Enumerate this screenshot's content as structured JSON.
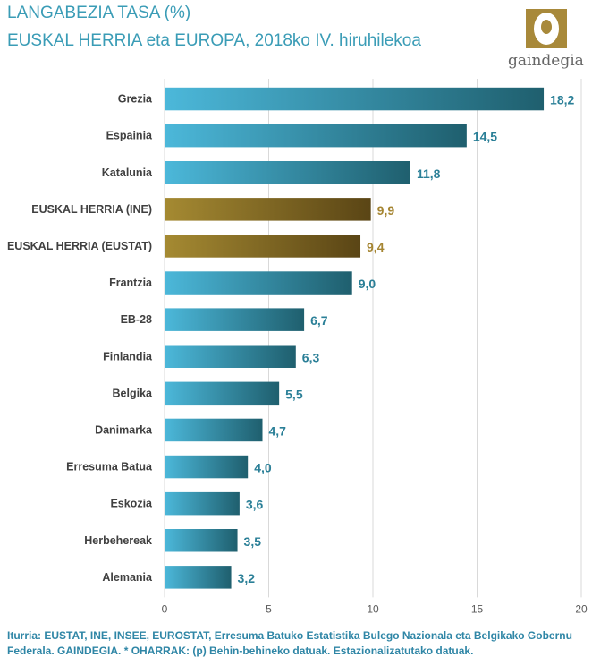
{
  "header": {
    "title": "LANGABEZIA TASA (%)",
    "subtitle": "EUSKAL HERRIA eta EUROPA, 2018ko IV. hiruhilekoa"
  },
  "logo": {
    "text": "gaindegia",
    "icon": "gaindegia-logo-icon"
  },
  "colors": {
    "bar_default_start": "#4cb8da",
    "bar_default_end": "#1f5f6e",
    "bar_highlight_start": "#a58a32",
    "bar_highlight_end": "#5a4515",
    "label_default": "#2a7f97",
    "label_highlight": "#a58532"
  },
  "chart_data": {
    "type": "bar",
    "orientation": "horizontal",
    "categories": [
      "Grezia",
      "Espainia",
      "Katalunia",
      "EUSKAL HERRIA (INE)",
      "EUSKAL HERRIA (EUSTAT)",
      "Frantzia",
      "EB-28",
      "Finlandia",
      "Belgika",
      "Danimarka",
      "Erresuma Batua",
      "Eskozia",
      "Herbehereak",
      "Alemania"
    ],
    "values": [
      18.2,
      14.5,
      11.8,
      9.9,
      9.4,
      9.0,
      6.7,
      6.3,
      5.5,
      4.7,
      4.0,
      3.6,
      3.5,
      3.2
    ],
    "value_labels": [
      "18,2",
      "14,5",
      "11,8",
      "9,9",
      "9,4",
      "9,0",
      "6,7",
      "6,3",
      "5,5",
      "4,7",
      "4,0",
      "3,6",
      "3,5",
      "3,2"
    ],
    "highlighted": [
      "EUSKAL HERRIA (INE)",
      "EUSKAL HERRIA (EUSTAT)"
    ],
    "xlim": [
      0,
      20
    ],
    "xticks": [
      0,
      5,
      10,
      15,
      20
    ],
    "grid": true
  },
  "footer": {
    "source": "Iturria: EUSTAT, INE, INSEE, EUROSTAT, Erresuma Batuko Estatistika Bulego Nazionala eta Belgikako Gobernu Federala. GAINDEGIA.   * OHARRAK: (p) Behin-behineko datuak. Estazionalizatutako datuak."
  }
}
